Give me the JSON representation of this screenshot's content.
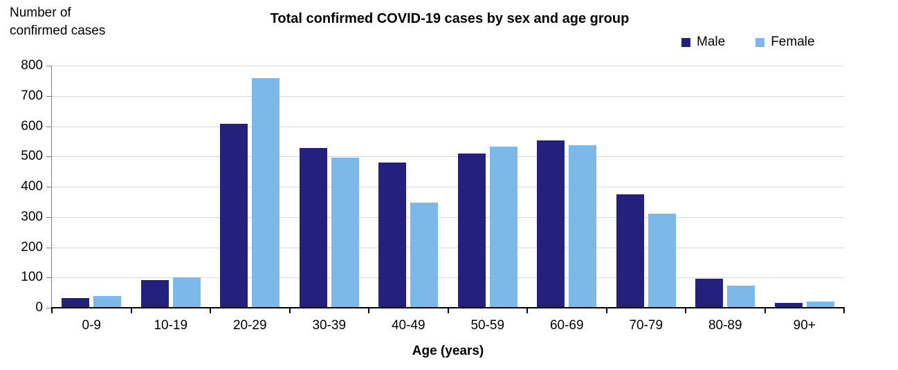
{
  "chart_data": {
    "type": "bar",
    "title": "Total confirmed COVID-19 cases by sex and age group",
    "ylabel": "Number of confirmed cases",
    "xlabel": "Age (years)",
    "categories": [
      "0-9",
      "10-19",
      "20-29",
      "30-39",
      "40-49",
      "50-59",
      "60-69",
      "70-79",
      "80-89",
      "90+"
    ],
    "series": [
      {
        "name": "Male",
        "color": "#23217C",
        "values": [
          33,
          92,
          608,
          527,
          480,
          510,
          553,
          375,
          95,
          17
        ]
      },
      {
        "name": "Female",
        "color": "#7CB8E8",
        "values": [
          38,
          100,
          760,
          495,
          348,
          533,
          537,
          310,
          73,
          20
        ]
      }
    ],
    "ylim": [
      0,
      800
    ],
    "ytick_step": 100,
    "grid": "horizontal gridlines on",
    "legend_position": "top-right",
    "gridline_color": "#D9D9D9",
    "y_axis_color": "#808080",
    "x_axis_color": "#000000",
    "text_color": "#000000"
  }
}
